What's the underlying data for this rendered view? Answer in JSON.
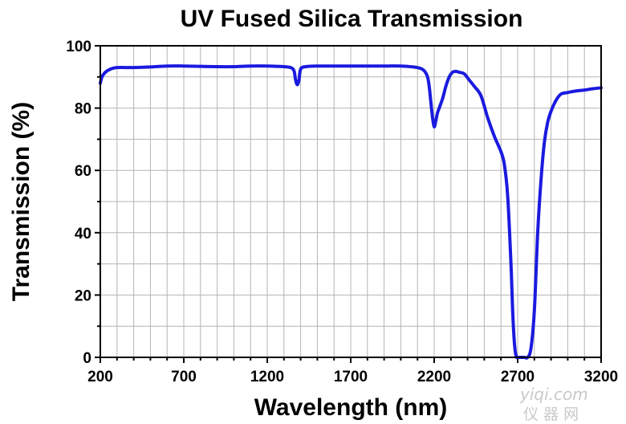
{
  "chart_data": {
    "type": "line",
    "title": "UV Fused Silica Transmission",
    "xlabel": "Wavelength (nm)",
    "ylabel": "Transmission (%)",
    "xlim": [
      200,
      3200
    ],
    "ylim": [
      0,
      100
    ],
    "x_ticks": [
      "200",
      "700",
      "1200",
      "1700",
      "2200",
      "2700",
      "3200"
    ],
    "y_ticks": [
      "0",
      "20",
      "40",
      "60",
      "80",
      "100"
    ],
    "grid": true,
    "legend": "none",
    "series": [
      {
        "color": "#1a1adf",
        "x": [
          200,
          210,
          230,
          260,
          300,
          400,
          500,
          600,
          700,
          800,
          900,
          1000,
          1100,
          1200,
          1300,
          1340,
          1360,
          1370,
          1380,
          1390,
          1400,
          1430,
          1500,
          1700,
          1900,
          2000,
          2100,
          2140,
          2160,
          2170,
          2180,
          2190,
          2200,
          2210,
          2220,
          2230,
          2250,
          2270,
          2290,
          2310,
          2330,
          2350,
          2380,
          2410,
          2440,
          2480,
          2520,
          2560,
          2600,
          2620,
          2640,
          2660,
          2670,
          2680,
          2690,
          2700,
          2710,
          2720,
          2740,
          2760,
          2780,
          2800,
          2820,
          2840,
          2860,
          2880,
          2900,
          2930,
          2960,
          3000,
          3050,
          3100,
          3150,
          3200
        ],
        "y": [
          88,
          90,
          91.5,
          92.5,
          93,
          93,
          93.2,
          93.5,
          93.5,
          93.4,
          93.3,
          93.3,
          93.5,
          93.5,
          93.3,
          93,
          92,
          89,
          87.5,
          89,
          92.5,
          93.3,
          93.5,
          93.5,
          93.5,
          93.5,
          93,
          92,
          90,
          87,
          82,
          77,
          74,
          76,
          78.5,
          80,
          83,
          87,
          90,
          91.5,
          91.8,
          91.5,
          91,
          89,
          87,
          84,
          77,
          71,
          66,
          62,
          52,
          30,
          15,
          5,
          0.5,
          0,
          0,
          0,
          0,
          0,
          3,
          15,
          40,
          57,
          69,
          75.5,
          79,
          82.5,
          84.5,
          85,
          85.5,
          85.8,
          86.2,
          86.5
        ]
      }
    ]
  },
  "watermark": {
    "domain": "yiqi.com",
    "chinese": "仪 器 网"
  }
}
